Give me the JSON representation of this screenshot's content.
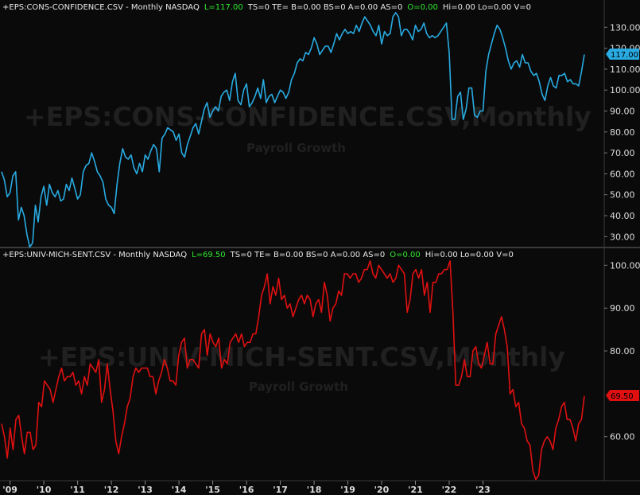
{
  "panels": [
    {
      "header": {
        "symbol": "+EPS:CONS-CONFIDENCE.CSV - Monthly  NASDAQ",
        "last": "L=117.00",
        "stats1": "TS=0  TE=  B=0.00  BS=0  A=0.00  AS=0",
        "open": "O=0.00",
        "stats2": "Hi=0.00  Lo=0.00  V=0"
      },
      "watermark": "+EPS:CONS-CONFIDENCE.CSV,Monthly",
      "watermark_sub": "Payroll Growth",
      "last_label": "117.00",
      "color": "#29abe2",
      "y_ticks": [
        "130.00",
        "120.00",
        "110.00",
        "100.00",
        "90.00",
        "80.00",
        "70.00",
        "60.00",
        "50.00",
        "40.00",
        "30.00"
      ]
    },
    {
      "header": {
        "symbol": "+EPS:UNIV-MICH-SENT.CSV - Monthly  NASDAQ",
        "last": "L=69.50",
        "stats1": "TS=0  TE=  B=0.00  BS=0  A=0.00  AS=0",
        "open": "O=0.00",
        "stats2": "Hi=0.00  Lo=0.00  V=0"
      },
      "watermark": "+EPS:UNIV-MICH-SENT.CSV,Monthly",
      "watermark_sub": "Payroll Growth",
      "last_label": "69.50",
      "color": "#e01010",
      "y_ticks": [
        "100.00",
        "90.00",
        "80.00",
        "60.00"
      ]
    }
  ],
  "x_ticks": [
    "'09",
    "'10",
    "'11",
    "'12",
    "'13",
    "'14",
    "'15",
    "'16",
    "'17",
    "'18",
    "'19",
    "'20",
    "'21",
    "'22",
    "'23"
  ],
  "chart_data": [
    {
      "type": "line",
      "title": "+EPS:CONS-CONFIDENCE.CSV - Monthly",
      "x_start": "2008-10",
      "x_end": "2023-06",
      "ylim": [
        25,
        140
      ],
      "series": [
        {
          "name": "CONS-CONFIDENCE",
          "values": [
            61,
            57,
            49,
            51,
            59,
            61,
            38,
            44,
            40,
            31,
            25,
            27,
            45,
            37,
            49,
            54,
            45,
            55,
            51,
            49,
            52,
            47,
            48,
            55,
            52,
            58,
            53,
            48,
            50,
            61,
            64,
            65,
            70,
            66,
            61,
            59,
            56,
            48,
            45,
            44,
            41,
            55,
            65,
            72,
            68,
            67,
            69,
            63,
            60,
            65,
            61,
            69,
            67,
            71,
            74,
            72,
            61,
            77,
            79,
            82,
            81,
            80,
            76,
            79,
            70,
            68,
            74,
            78,
            82,
            84,
            79,
            85,
            91,
            94,
            87,
            90,
            92,
            90,
            97,
            99,
            100,
            95,
            104,
            108,
            95,
            93,
            100,
            103,
            92,
            94,
            97,
            101,
            96,
            105,
            94,
            97,
            98,
            94,
            97,
            100,
            99,
            96,
            99,
            105,
            108,
            113,
            115,
            114,
            118,
            117,
            120,
            125,
            122,
            117,
            119,
            121,
            121,
            118,
            122,
            127,
            124,
            127,
            129,
            127,
            128,
            127,
            131,
            128,
            132,
            135,
            133,
            131,
            128,
            126,
            131,
            122,
            128,
            126,
            127,
            135,
            137,
            135,
            126,
            129,
            129,
            127,
            124,
            131,
            128,
            129,
            132,
            127,
            125,
            126,
            125,
            126,
            128,
            130,
            132,
            118,
            86,
            86,
            97,
            99,
            86,
            91,
            101,
            101,
            88,
            87,
            90,
            90,
            109,
            117,
            122,
            127,
            131,
            129,
            125,
            120,
            114,
            110,
            113,
            114,
            111,
            117,
            113,
            113,
            109,
            107,
            108,
            104,
            98,
            95,
            102,
            106,
            102,
            101,
            107,
            107,
            108,
            104,
            105,
            103,
            103,
            102,
            109,
            117
          ]
        }
      ]
    },
    {
      "type": "line",
      "title": "+EPS:UNIV-MICH-SENT.CSV - Monthly",
      "x_start": "2008-10",
      "x_end": "2023-06",
      "ylim": [
        50,
        101
      ],
      "series": [
        {
          "name": "UNIV-MICH-SENT",
          "values": [
            63,
            60,
            55,
            62,
            57,
            64,
            65,
            60,
            56,
            61,
            61,
            57,
            58,
            68,
            67,
            73,
            72,
            71,
            68,
            71,
            74,
            76,
            73,
            74,
            74,
            75,
            72,
            73,
            70,
            74,
            72,
            77,
            76,
            75,
            78,
            68,
            71,
            77,
            71,
            66,
            59,
            56,
            60,
            63,
            67,
            69,
            74,
            76,
            75,
            76,
            76,
            76,
            74,
            74,
            70,
            73,
            75,
            78,
            76,
            73,
            73,
            72,
            79,
            82,
            83,
            76,
            78,
            78,
            77,
            76,
            84,
            85,
            79,
            84,
            82,
            81,
            83,
            76,
            78,
            77,
            82,
            83,
            84,
            82,
            84,
            81,
            82,
            82,
            84,
            84,
            88,
            93,
            95,
            98,
            91,
            95,
            93,
            97,
            92,
            93,
            90,
            91,
            88,
            90,
            92,
            93,
            91,
            93,
            92,
            88,
            91,
            92,
            89,
            96,
            93,
            87,
            90,
            91,
            94,
            93,
            98,
            98,
            97,
            98,
            98,
            96,
            97,
            99,
            99,
            101,
            98,
            97,
            100,
            99,
            98,
            97,
            98,
            96,
            97,
            100,
            99,
            98,
            89,
            92,
            98,
            99,
            97,
            99,
            93,
            96,
            89,
            96,
            96,
            98,
            98,
            99,
            99,
            101,
            89,
            72,
            72,
            74,
            78,
            74,
            74,
            80,
            81,
            77,
            76,
            79,
            82,
            77,
            77,
            84,
            86,
            88,
            85,
            81,
            70,
            71,
            67,
            68,
            63,
            62,
            59,
            58,
            52,
            50,
            51,
            57,
            59,
            60,
            59,
            57,
            62,
            64,
            67,
            68,
            64,
            64,
            62,
            59,
            63,
            64,
            69.5
          ]
        }
      ]
    }
  ]
}
